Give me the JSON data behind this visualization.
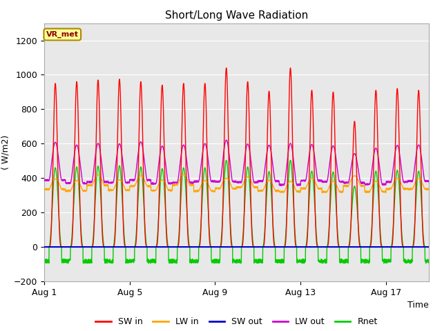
{
  "title": "Short/Long Wave Radiation",
  "xlabel": "Time",
  "ylabel": "( W/m2)",
  "ylim": [
    -200,
    1300
  ],
  "yticks": [
    -200,
    0,
    200,
    400,
    600,
    800,
    1000,
    1200
  ],
  "xtick_labels": [
    "Aug 1",
    "Aug 5",
    "Aug 9",
    "Aug 13",
    "Aug 17"
  ],
  "xtick_positions": [
    0,
    4,
    8,
    12,
    16
  ],
  "n_days": 18,
  "colors": {
    "SW_in": "#ff0000",
    "LW_in": "#ffa500",
    "SW_out": "#0000cc",
    "LW_out": "#cc00cc",
    "Rnet": "#00cc00"
  },
  "legend_labels": [
    "SW in",
    "LW in",
    "SW out",
    "LW out",
    "Rnet"
  ],
  "bg_color": "#e8e8e8",
  "label_box": "VR_met",
  "label_box_color": "#ffff99",
  "label_box_edge": "#aa8800",
  "label_box_text_color": "#880000"
}
